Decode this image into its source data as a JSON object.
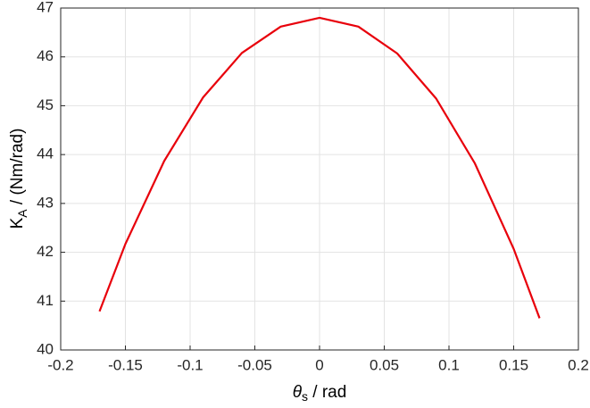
{
  "chart_data": {
    "type": "line",
    "xlabel": {
      "symbol": "θ",
      "subscript": "s",
      "text": " / rad"
    },
    "ylabel": {
      "symbol": "K",
      "subscript": "A",
      "text": " / (Nm/rad)"
    },
    "x": [
      -0.17,
      -0.15,
      -0.12,
      -0.09,
      -0.06,
      -0.03,
      0,
      0.03,
      0.06,
      0.09,
      0.12,
      0.15,
      0.17
    ],
    "series": [
      {
        "color": "#e8000b",
        "values": [
          40.79,
          42.17,
          43.87,
          45.17,
          46.08,
          46.62,
          46.8,
          46.62,
          46.07,
          45.15,
          43.82,
          42.07,
          40.65
        ]
      }
    ],
    "xlim": [
      -0.2,
      0.2
    ],
    "xticks": [
      -0.2,
      -0.15,
      -0.1,
      -0.05,
      0,
      0.05,
      0.1,
      0.15,
      0.2
    ],
    "ylim": [
      40,
      47
    ],
    "yticks": [
      40,
      41,
      42,
      43,
      44,
      45,
      46,
      47
    ],
    "grid": true
  }
}
